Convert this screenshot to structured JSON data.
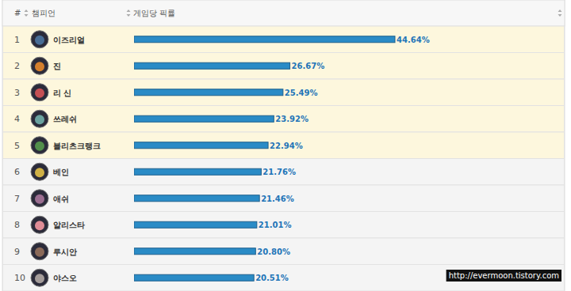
{
  "chart_data": {
    "type": "bar",
    "orientation": "horizontal",
    "data_labels": true,
    "tick_labels": false,
    "column_headers": [
      "#",
      "챔피언",
      "게임당 픽률"
    ],
    "ranks": [
      1,
      2,
      3,
      4,
      5,
      6,
      7,
      8,
      9,
      10
    ],
    "categories": [
      "이즈리얼",
      "진",
      "리 신",
      "쓰레쉬",
      "블리츠크랭크",
      "베인",
      "애쉬",
      "알리스타",
      "루시안",
      "야스오"
    ],
    "values": [
      44.64,
      26.67,
      25.49,
      23.92,
      22.94,
      21.76,
      21.46,
      21.01,
      20.8,
      20.51
    ],
    "value_labels": [
      "44.64%",
      "26.67%",
      "25.49%",
      "23.92%",
      "22.94%",
      "21.76%",
      "21.46%",
      "21.01%",
      "20.80%",
      "20.51%"
    ],
    "color": "#2a8bc6",
    "annotation": "http://evermoon.tistory.com"
  }
}
